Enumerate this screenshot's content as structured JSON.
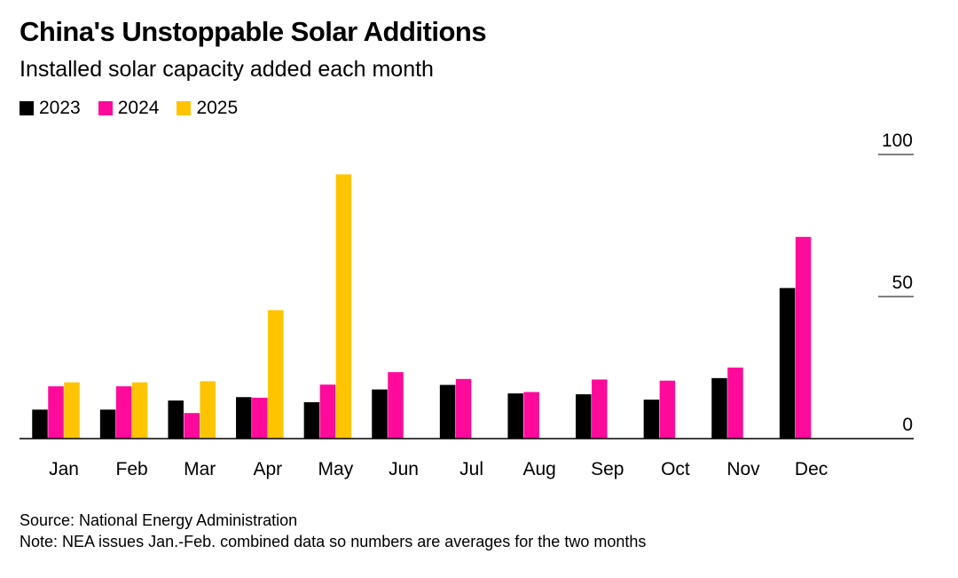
{
  "title": "China's Unstoppable Solar Additions",
  "subtitle": "Installed solar capacity added each month",
  "source": "Source: National Energy Administration",
  "note": "Note: NEA issues Jan.-Feb. combined data so numbers are averages for the two months",
  "chart_data": {
    "type": "bar",
    "title": "China's Unstoppable Solar Additions",
    "subtitle": "Installed solar capacity added each month",
    "xlabel": "",
    "ylabel": "",
    "ylim": [
      0,
      100
    ],
    "yticks": [
      "0",
      "50",
      "100"
    ],
    "grid": false,
    "legend_position": "top-left",
    "categories": [
      "Jan",
      "Feb",
      "Mar",
      "Apr",
      "May",
      "Jun",
      "Jul",
      "Aug",
      "Sep",
      "Oct",
      "Nov",
      "Dec"
    ],
    "series": [
      {
        "name": "2023",
        "color": "#000000",
        "values": [
          10.2,
          10.2,
          13.4,
          14.6,
          12.8,
          17.3,
          18.9,
          15.9,
          15.6,
          13.7,
          21.3,
          53.0
        ]
      },
      {
        "name": "2024",
        "color": "#ff0a9a",
        "values": [
          18.4,
          18.4,
          9.0,
          14.4,
          19.0,
          23.4,
          21.0,
          16.4,
          20.8,
          20.4,
          25.0,
          71.0
        ]
      },
      {
        "name": "2025",
        "color": "#ffc400",
        "values": [
          19.8,
          19.8,
          20.2,
          45.2,
          93.0,
          null,
          null,
          null,
          null,
          null,
          null,
          null
        ]
      }
    ]
  }
}
